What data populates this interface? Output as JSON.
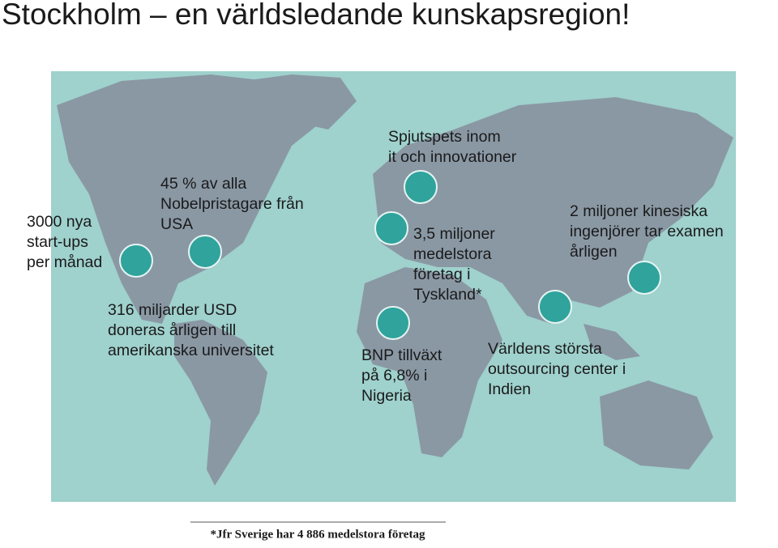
{
  "title": "Stockholm – en världsledande kunskapsregion!",
  "annotations": [
    {
      "lines": [
        "3000 nya",
        "start-ups",
        "per månad"
      ]
    },
    {
      "lines": [
        "45 % av alla",
        "Nobelpristagare från",
        "USA"
      ]
    },
    {
      "lines": [
        "316 miljarder USD",
        "doneras årligen till",
        "amerikanska universitet"
      ]
    },
    {
      "lines": [
        "Spjutspets inom",
        "it och innovationer"
      ]
    },
    {
      "lines": [
        "3,5 miljoner",
        "medelstora",
        "företag i",
        "Tyskland*"
      ]
    },
    {
      "lines": [
        "BNP tillväxt",
        "på 6,8% i",
        "Nigeria"
      ]
    },
    {
      "lines": [
        "2 miljoner kinesiska",
        "ingenjörer tar examen",
        "årligen"
      ]
    },
    {
      "lines": [
        "Världens största",
        "outsourcing center i",
        "Indien"
      ]
    }
  ],
  "footnote": "*Jfr Sverige har 4 886 medelstora företag"
}
